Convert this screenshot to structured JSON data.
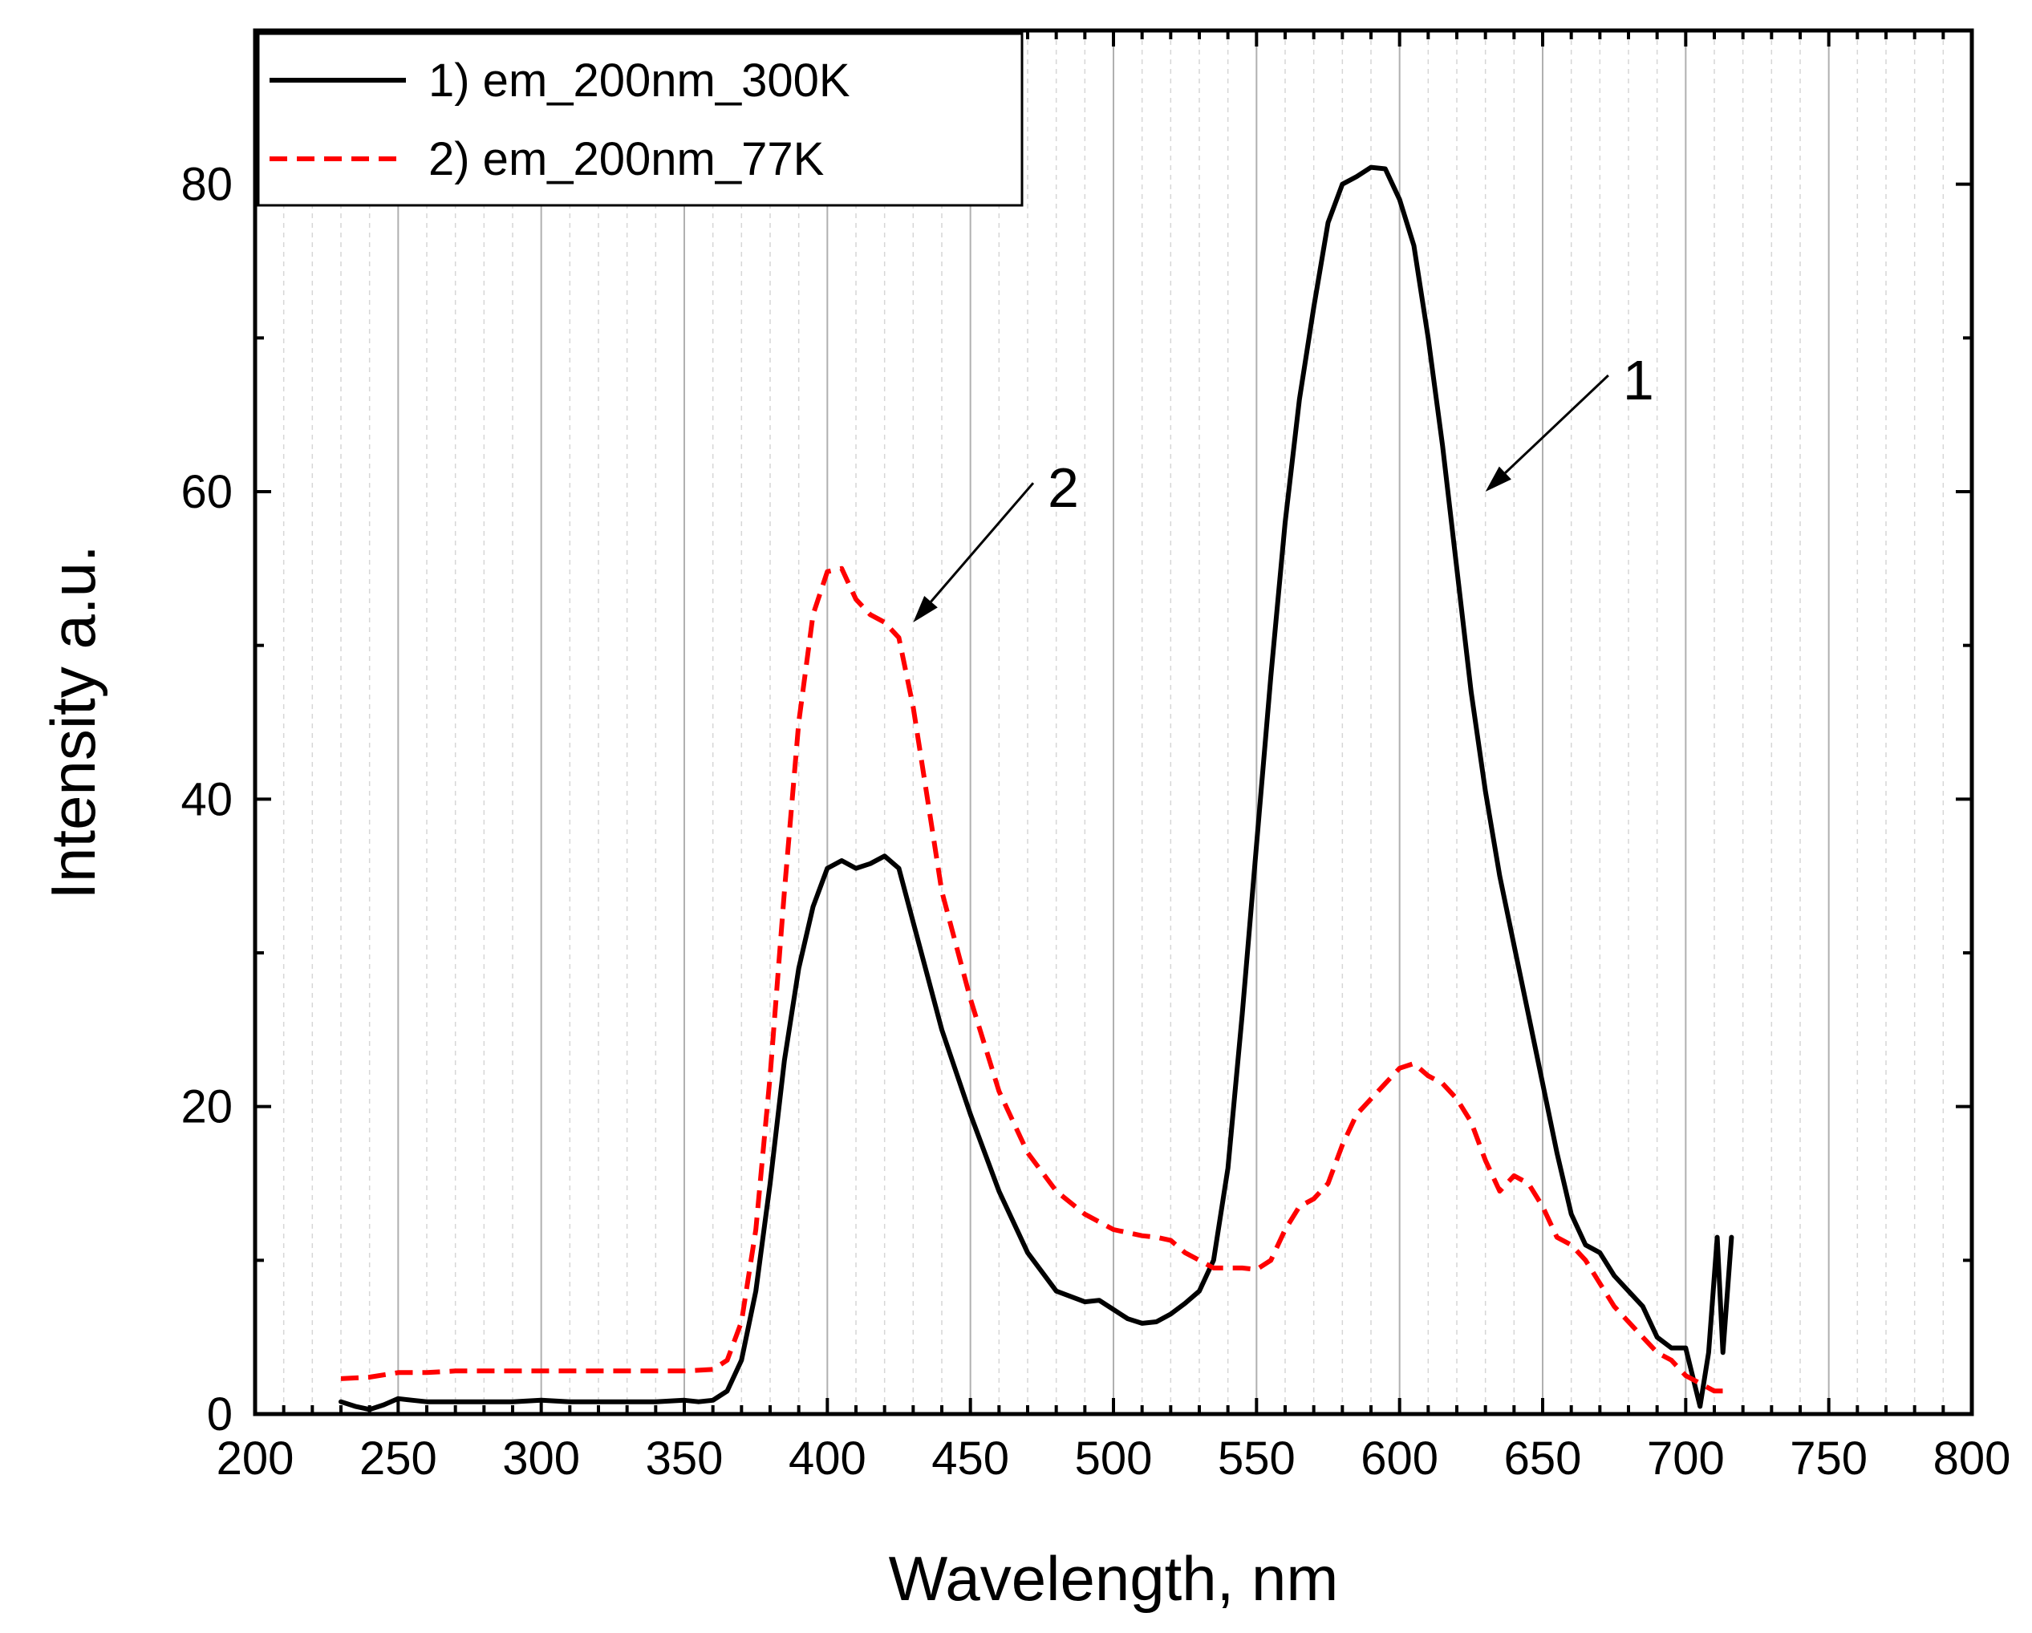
{
  "chart_data": {
    "type": "line",
    "title": "",
    "xlabel": "Wavelength, nm",
    "ylabel": "Intensity a.u.",
    "xlim": [
      200,
      800
    ],
    "ylim": [
      0,
      90
    ],
    "xticks": [
      200,
      250,
      300,
      350,
      400,
      450,
      500,
      550,
      600,
      650,
      700,
      750,
      800
    ],
    "yticks": [
      0,
      20,
      40,
      60,
      80
    ],
    "x_minor_step": 10,
    "y_minor_step": 10,
    "grid": true,
    "legend_position": "top-left",
    "series": [
      {
        "name": "1) em_200nm_300K",
        "color": "#000000",
        "style": "solid",
        "x": [
          230,
          235,
          240,
          245,
          250,
          255,
          260,
          270,
          280,
          290,
          300,
          310,
          320,
          330,
          340,
          350,
          355,
          360,
          365,
          370,
          375,
          380,
          385,
          390,
          395,
          400,
          405,
          410,
          415,
          420,
          425,
          430,
          435,
          440,
          450,
          460,
          470,
          480,
          490,
          495,
          500,
          505,
          510,
          515,
          520,
          525,
          530,
          535,
          540,
          545,
          550,
          555,
          560,
          565,
          570,
          575,
          580,
          585,
          590,
          595,
          600,
          605,
          610,
          615,
          620,
          625,
          630,
          635,
          640,
          645,
          650,
          655,
          660,
          665,
          670,
          675,
          680,
          685,
          690,
          695,
          700,
          705,
          708,
          711,
          713,
          716
        ],
        "y": [
          0.8,
          0.5,
          0.3,
          0.6,
          1.0,
          0.9,
          0.8,
          0.8,
          0.8,
          0.8,
          0.9,
          0.8,
          0.8,
          0.8,
          0.8,
          0.9,
          0.8,
          0.9,
          1.5,
          3.5,
          8,
          15,
          23,
          29,
          33,
          35.5,
          36,
          35.5,
          35.8,
          36.3,
          35.5,
          32,
          28.5,
          25,
          19.5,
          14.5,
          10.5,
          8,
          7.3,
          7.4,
          6.8,
          6.2,
          5.9,
          6.0,
          6.5,
          7.2,
          8.0,
          10,
          16,
          26,
          37,
          48,
          58,
          66,
          72,
          77.5,
          80,
          80.5,
          81.1,
          81,
          79,
          76,
          70,
          63,
          55,
          47,
          40.5,
          35,
          30.5,
          26,
          21.5,
          17,
          13,
          11,
          10.5,
          9,
          8,
          7,
          5,
          4.3,
          4.3,
          0.5,
          4,
          11.5,
          4,
          11.5
        ]
      },
      {
        "name": "2) em_200nm_77K",
        "color": "#ff0000",
        "style": "dashed",
        "x": [
          230,
          240,
          250,
          260,
          270,
          280,
          290,
          300,
          310,
          320,
          330,
          340,
          350,
          360,
          365,
          370,
          375,
          380,
          385,
          390,
          395,
          400,
          405,
          410,
          415,
          420,
          425,
          430,
          435,
          440,
          450,
          460,
          470,
          480,
          490,
          495,
          500,
          505,
          510,
          515,
          520,
          525,
          530,
          535,
          540,
          545,
          550,
          555,
          560,
          565,
          570,
          575,
          580,
          585,
          590,
          595,
          600,
          605,
          610,
          615,
          620,
          625,
          630,
          635,
          640,
          645,
          650,
          655,
          660,
          665,
          670,
          675,
          680,
          685,
          690,
          695,
          700,
          705,
          710,
          715
        ],
        "y": [
          2.3,
          2.4,
          2.7,
          2.7,
          2.8,
          2.8,
          2.8,
          2.8,
          2.8,
          2.8,
          2.8,
          2.8,
          2.8,
          2.9,
          3.5,
          6,
          12,
          22,
          34,
          45,
          52,
          54.8,
          55,
          53,
          52,
          51.5,
          50.5,
          46,
          40,
          34,
          27,
          21,
          17,
          14.5,
          13,
          12.5,
          12,
          11.8,
          11.6,
          11.5,
          11.3,
          10.5,
          10,
          9.5,
          9.5,
          9.5,
          9.4,
          10,
          12,
          13.5,
          14,
          15,
          17.5,
          19.5,
          20.5,
          21.5,
          22.5,
          22.8,
          22,
          21.5,
          20.5,
          19,
          16.5,
          14.5,
          15.5,
          15,
          13.5,
          11.5,
          11,
          10,
          8.5,
          7,
          6,
          5,
          4,
          3.5,
          2.5,
          2,
          1.5,
          1.5
        ]
      }
    ],
    "annotations": [
      {
        "text": "1",
        "series": "1) em_200nm_300K",
        "points_to_x": 630,
        "points_to_y": 60,
        "label_x": 678,
        "label_y": 66
      },
      {
        "text": "2",
        "series": "2) em_200nm_77K",
        "points_to_x": 430,
        "points_to_y": 51.5,
        "label_x": 477,
        "label_y": 59
      }
    ]
  }
}
